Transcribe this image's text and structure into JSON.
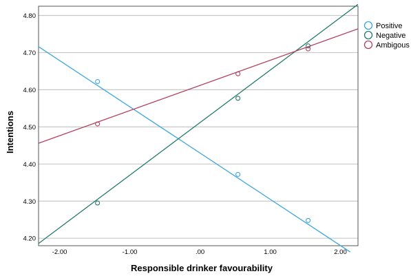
{
  "chart_data": {
    "type": "scatter",
    "xlabel": "Responsible drinker favourability",
    "ylabel": "Intentions",
    "xlim": [
      -2.3,
      2.25
    ],
    "ylim": [
      4.18,
      4.825
    ],
    "x_ticks": [
      -2,
      -1,
      0,
      1,
      2
    ],
    "x_tick_labels": [
      "-2.00",
      "-1.00",
      ".00",
      "1.00",
      "2.00"
    ],
    "y_ticks": [
      4.2,
      4.3,
      4.4,
      4.5,
      4.6,
      4.7,
      4.8
    ],
    "y_tick_labels": [
      "4.20",
      "4.30",
      "4.40",
      "4.50",
      "4.60",
      "4.70",
      "4.80"
    ],
    "grid": "horizontal",
    "legend_position": "top-right",
    "series": [
      {
        "name": "Positive",
        "color": "#3aa6df",
        "points": [
          {
            "x": -1.46,
            "y": 4.622
          },
          {
            "x": 0.54,
            "y": 4.372
          },
          {
            "x": 1.54,
            "y": 4.248
          }
        ],
        "fit_line": [
          {
            "x": -2.3,
            "y": 4.716
          },
          {
            "x": 2.14,
            "y": 4.163
          }
        ]
      },
      {
        "name": "Negative",
        "color": "#247a6c",
        "points": [
          {
            "x": -1.46,
            "y": 4.295
          },
          {
            "x": 0.54,
            "y": 4.577
          },
          {
            "x": 1.54,
            "y": 4.718
          }
        ],
        "fit_line": [
          {
            "x": -2.3,
            "y": 4.186
          },
          {
            "x": 2.25,
            "y": 4.83
          }
        ]
      },
      {
        "name": "Ambigous",
        "color": "#b5405e",
        "points": [
          {
            "x": -1.46,
            "y": 4.508
          },
          {
            "x": 0.54,
            "y": 4.643
          },
          {
            "x": 1.54,
            "y": 4.71
          }
        ],
        "fit_line": [
          {
            "x": -2.3,
            "y": 4.456
          },
          {
            "x": 2.25,
            "y": 4.764
          }
        ]
      }
    ]
  }
}
